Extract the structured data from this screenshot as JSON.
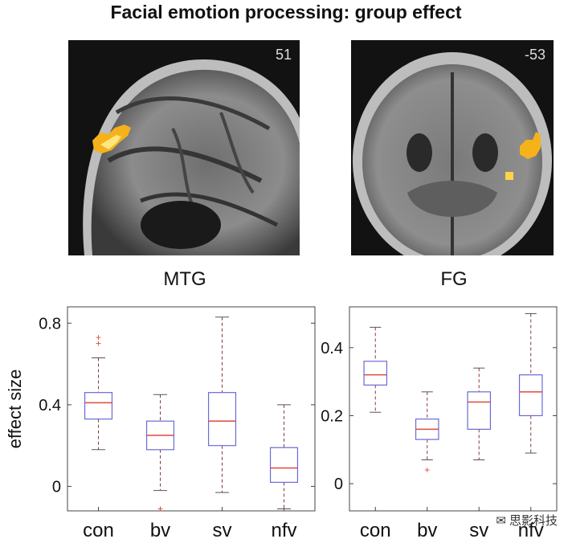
{
  "title": "Facial emotion processing: group effect",
  "images": [
    {
      "slice": "51",
      "label": "MTG"
    },
    {
      "slice": "-53",
      "label": "FG"
    }
  ],
  "watermark": "思影科技",
  "colors": {
    "box": "#6a6ad8",
    "median": "#e04a3a",
    "whisker": "#8a3a3a",
    "outlier": "#e04a3a",
    "activation": "#f5b21a"
  },
  "chart_data": [
    {
      "type": "box",
      "title": "",
      "ylabel": "effect size",
      "xlabel": "",
      "categories": [
        "con",
        "bv",
        "sv",
        "nfv"
      ],
      "ylim": [
        -0.12,
        0.88
      ],
      "yticks": [
        0,
        0.4,
        0.8
      ],
      "ytick_labels": [
        "0",
        "0.4",
        "0.8"
      ],
      "grid": false,
      "boxes": [
        {
          "whisker_low": 0.18,
          "q1": 0.33,
          "median": 0.41,
          "q3": 0.46,
          "whisker_high": 0.63,
          "outliers": [
            0.7,
            0.73
          ]
        },
        {
          "whisker_low": -0.02,
          "q1": 0.18,
          "median": 0.25,
          "q3": 0.32,
          "whisker_high": 0.45,
          "outliers": [
            -0.11
          ]
        },
        {
          "whisker_low": -0.03,
          "q1": 0.2,
          "median": 0.32,
          "q3": 0.46,
          "whisker_high": 0.83,
          "outliers": []
        },
        {
          "whisker_low": -0.11,
          "q1": 0.02,
          "median": 0.09,
          "q3": 0.19,
          "whisker_high": 0.4,
          "outliers": []
        }
      ]
    },
    {
      "type": "box",
      "title": "",
      "ylabel": "",
      "xlabel": "",
      "categories": [
        "con",
        "bv",
        "sv",
        "nfv"
      ],
      "ylim": [
        -0.08,
        0.52
      ],
      "yticks": [
        0,
        0.2,
        0.4
      ],
      "ytick_labels": [
        "0",
        "0.2",
        "0.4"
      ],
      "grid": false,
      "boxes": [
        {
          "whisker_low": 0.21,
          "q1": 0.29,
          "median": 0.32,
          "q3": 0.36,
          "whisker_high": 0.46,
          "outliers": []
        },
        {
          "whisker_low": 0.07,
          "q1": 0.13,
          "median": 0.16,
          "q3": 0.19,
          "whisker_high": 0.27,
          "outliers": [
            0.04
          ]
        },
        {
          "whisker_low": 0.07,
          "q1": 0.16,
          "median": 0.24,
          "q3": 0.27,
          "whisker_high": 0.34,
          "outliers": []
        },
        {
          "whisker_low": 0.09,
          "q1": 0.2,
          "median": 0.27,
          "q3": 0.32,
          "whisker_high": 0.5,
          "outliers": []
        }
      ]
    }
  ]
}
